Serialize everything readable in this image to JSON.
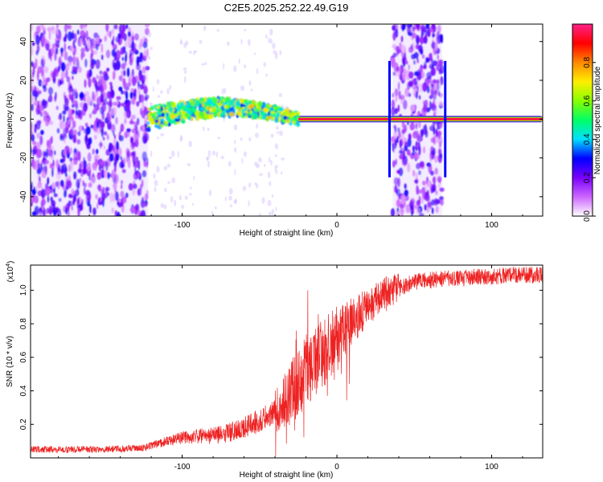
{
  "figure": {
    "title": "C2E5.2025.252.22.49.G19"
  },
  "chart_data": [
    {
      "type": "heatmap",
      "title": "C2E5.2025.252.22.49.G19",
      "xlabel": "Height of straight line (km)",
      "ylabel": "Frequency (Hz)",
      "xlim": [
        -198,
        133
      ],
      "ylim": [
        -50,
        49
      ],
      "x_ticks": [
        -100,
        0,
        100
      ],
      "y_ticks": [
        -40,
        -20,
        0,
        20,
        40
      ],
      "colorbar": {
        "label": "Normalized spectral amplitude",
        "range": [
          0,
          1
        ],
        "ticks": [
          "0.0",
          "0.2",
          "0.4",
          "0.6",
          "0.8"
        ],
        "colors": [
          "#ffffff",
          "#cc66ff",
          "#7a00ff",
          "#0000ff",
          "#00e0ff",
          "#00ff66",
          "#88ff00",
          "#ffee00",
          "#ff8800",
          "#ff0000",
          "#ff2288"
        ]
      },
      "regions": [
        {
          "name": "noise",
          "x": [
            -198,
            -122
          ],
          "y": [
            -50,
            49
          ],
          "amplitude": 0.25
        },
        {
          "name": "signal band",
          "x": [
            -122,
            -25
          ],
          "center_freq": [
            0,
            6
          ],
          "amplitude": 0.45
        },
        {
          "name": "tone",
          "x": [
            -25,
            133
          ],
          "freq": 0,
          "amplitude": 0.95
        },
        {
          "name": "noise",
          "x": [
            36,
            68
          ],
          "y": [
            -50,
            49
          ],
          "amplitude": 0.25
        }
      ],
      "grid": false
    },
    {
      "type": "line",
      "xlabel": "Height of straight line (km)",
      "ylabel": "SNR (10 * v/v)",
      "multiplier": "(x10",
      "multiplier_exp": "4",
      "multiplier_close": ")",
      "xlim": [
        -198,
        133
      ],
      "ylim": [
        0,
        1.15
      ],
      "x_ticks": [
        -100,
        0,
        100
      ],
      "y_ticks": [
        "0.2",
        "0.4",
        "0.6",
        "0.8",
        "1.0"
      ],
      "color": "#ee2222",
      "series": [
        {
          "x": [
            -198,
            -180,
            -160,
            -140,
            -125,
            -110,
            -100,
            -90,
            -80,
            -70,
            -60,
            -50,
            -40,
            -35,
            -30,
            -25,
            -20,
            -15,
            -10,
            -5,
            0,
            5,
            10,
            15,
            20,
            25,
            30,
            35,
            40,
            45,
            50,
            60,
            70,
            80,
            90,
            100,
            110,
            120,
            133
          ],
          "values": [
            0.05,
            0.05,
            0.05,
            0.055,
            0.06,
            0.1,
            0.12,
            0.13,
            0.13,
            0.15,
            0.18,
            0.22,
            0.27,
            0.33,
            0.38,
            0.45,
            0.52,
            0.56,
            0.6,
            0.66,
            0.72,
            0.77,
            0.82,
            0.86,
            0.9,
            0.94,
            0.97,
            0.99,
            1.01,
            1.03,
            1.05,
            1.06,
            1.07,
            1.07,
            1.08,
            1.08,
            1.09,
            1.09,
            1.09
          ]
        }
      ],
      "grid": false
    }
  ]
}
